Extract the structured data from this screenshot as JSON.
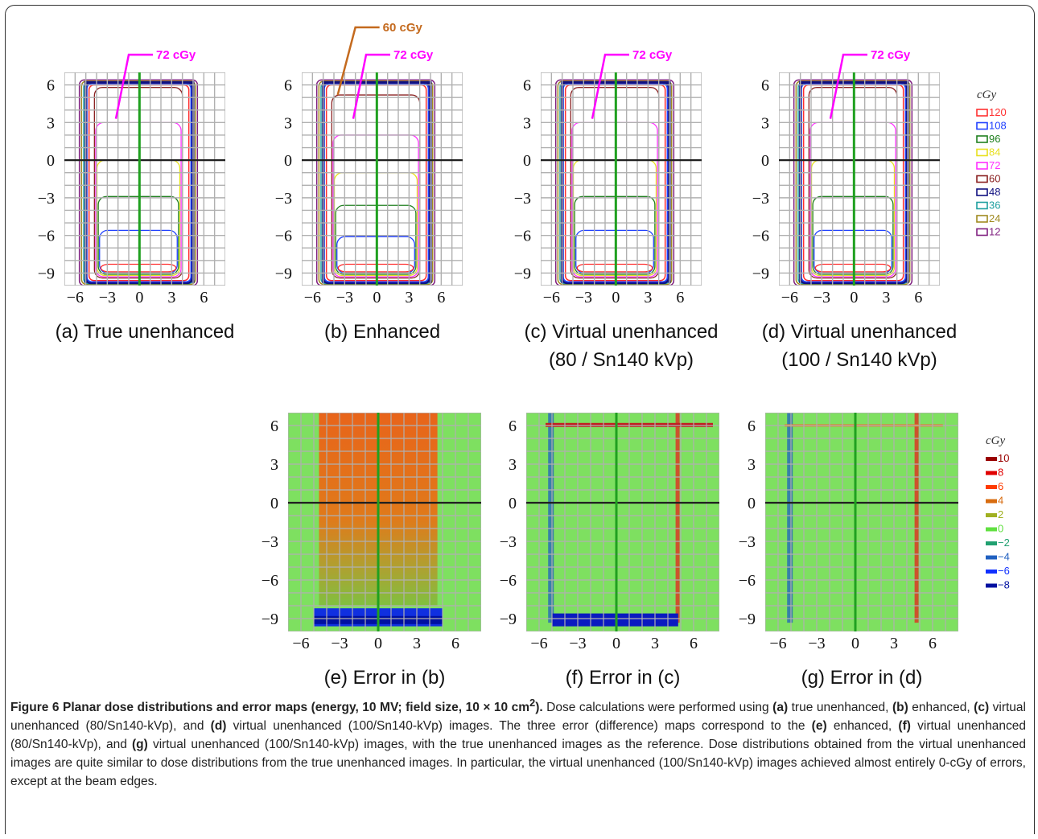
{
  "panels": [
    {
      "id": "a",
      "label": "(a) True unenhanced",
      "label2": "",
      "annotations": [
        {
          "text": "72 cGy",
          "color": "#ff00ff"
        }
      ]
    },
    {
      "id": "b",
      "label": "(b) Enhanced",
      "label2": "",
      "annotations": [
        {
          "text": "72 cGy",
          "color": "#ff00ff"
        },
        {
          "text": "60 cGy",
          "color": "#c46a1e"
        }
      ]
    },
    {
      "id": "c",
      "label": "(c) Virtual unenhanced",
      "label2": "(80 / Sn140 kVp)",
      "annotations": [
        {
          "text": "72 cGy",
          "color": "#ff00ff"
        }
      ]
    },
    {
      "id": "d",
      "label": "(d) Virtual unenhanced",
      "label2": "(100 / Sn140 kVp)",
      "annotations": [
        {
          "text": "72 cGy",
          "color": "#ff00ff"
        }
      ]
    },
    {
      "id": "e",
      "label": "(e) Error in (b)",
      "label2": "",
      "annotations": []
    },
    {
      "id": "f",
      "label": "(f) Error in (c)",
      "label2": "",
      "annotations": []
    },
    {
      "id": "g",
      "label": "(g) Error in (d)",
      "label2": "",
      "annotations": []
    }
  ],
  "chart_data": [
    {
      "type": "heatmap",
      "title": "(a) True unenhanced",
      "xticks": [
        "−6",
        "−3",
        "0",
        "3",
        "6"
      ],
      "yticks": [
        "6",
        "3",
        "0",
        "−3",
        "−6",
        "−9"
      ],
      "xlim": [
        -7,
        8
      ],
      "ylim": [
        -10,
        7
      ],
      "isodose_levels_cGy": [
        120,
        108,
        96,
        84,
        72,
        60,
        48,
        36,
        24,
        12
      ]
    },
    {
      "type": "heatmap",
      "title": "(b) Enhanced",
      "xticks": [
        "−6",
        "−3",
        "0",
        "3",
        "6"
      ],
      "yticks": [
        "6",
        "3",
        "0",
        "−3",
        "−6",
        "−9"
      ]
    },
    {
      "type": "heatmap",
      "title": "(c) Virtual unenhanced (80 / Sn140 kVp)",
      "xticks": [
        "−6",
        "−3",
        "0",
        "3",
        "6"
      ],
      "yticks": [
        "6",
        "3",
        "0",
        "−3",
        "−6",
        "−9"
      ]
    },
    {
      "type": "heatmap",
      "title": "(d) Virtual unenhanced (100 / Sn140 kVp)",
      "xticks": [
        "−6",
        "−3",
        "0",
        "3",
        "6"
      ],
      "yticks": [
        "6",
        "3",
        "0",
        "−3",
        "−6",
        "−9"
      ]
    },
    {
      "type": "heatmap",
      "title": "(e) Error in (b)",
      "xticks": [
        "−6",
        "−3",
        "0",
        "3",
        "6"
      ],
      "yticks": [
        "6",
        "3",
        "0",
        "−3",
        "−6",
        "−9"
      ],
      "error_levels_cGy": [
        10,
        8,
        6,
        4,
        2,
        0,
        -2,
        -4,
        -6,
        -8
      ]
    },
    {
      "type": "heatmap",
      "title": "(f) Error in (c)",
      "xticks": [
        "−6",
        "−3",
        "0",
        "3",
        "6"
      ],
      "yticks": [
        "6",
        "3",
        "0",
        "−3",
        "−6",
        "−9"
      ]
    },
    {
      "type": "heatmap",
      "title": "(g) Error in (d)",
      "xticks": [
        "−6",
        "−3",
        "0",
        "3",
        "6"
      ],
      "yticks": [
        "6",
        "3",
        "0",
        "−3",
        "−6",
        "−9"
      ]
    }
  ],
  "legend_dose": {
    "unit": "cGy",
    "entries": [
      {
        "label": "120",
        "color": "#ff3030"
      },
      {
        "label": "108",
        "color": "#2040ff"
      },
      {
        "label": "96",
        "color": "#208020"
      },
      {
        "label": "84",
        "color": "#e8e020"
      },
      {
        "label": "72",
        "color": "#ff30ff"
      },
      {
        "label": "60",
        "color": "#8a2020"
      },
      {
        "label": "48",
        "color": "#101080"
      },
      {
        "label": "36",
        "color": "#20a0a0"
      },
      {
        "label": "24",
        "color": "#a08a20"
      },
      {
        "label": "12",
        "color": "#802080"
      }
    ]
  },
  "legend_error": {
    "unit": "cGy",
    "entries": [
      {
        "label": "10",
        "color": "#9a0000"
      },
      {
        "label": "8",
        "color": "#e00000"
      },
      {
        "label": "6",
        "color": "#ff3a00"
      },
      {
        "label": "4",
        "color": "#d86c10"
      },
      {
        "label": "2",
        "color": "#a0b020"
      },
      {
        "label": "0",
        "color": "#60e040"
      },
      {
        "label": "−2",
        "color": "#20a070"
      },
      {
        "label": "−4",
        "color": "#2060c0"
      },
      {
        "label": "−6",
        "color": "#1030ff"
      },
      {
        "label": "−8",
        "color": "#0010a0"
      }
    ]
  },
  "caption": {
    "title": "Figure 6 Planar dose distributions and error maps (energy, 10 MV; field size, 10 × 10 cm",
    "title_sup": "2",
    "title_end": ").",
    "parts": [
      {
        "t": " Dose calculations were performed using ",
        "b": false
      },
      {
        "t": "(a)",
        "b": true
      },
      {
        "t": " true unenhanced, ",
        "b": false
      },
      {
        "t": "(b)",
        "b": true
      },
      {
        "t": " enhanced, ",
        "b": false
      },
      {
        "t": "(c)",
        "b": true
      },
      {
        "t": " virtual unenhanced (80/Sn140-kVp), and ",
        "b": false
      },
      {
        "t": "(d)",
        "b": true
      },
      {
        "t": " virtual unenhanced (100/Sn140-kVp) images. The three error (difference) maps correspond to the ",
        "b": false
      },
      {
        "t": "(e)",
        "b": true
      },
      {
        "t": " enhanced, ",
        "b": false
      },
      {
        "t": "(f)",
        "b": true
      },
      {
        "t": " virtual unenhanced (80/Sn140-kVp), and ",
        "b": false
      },
      {
        "t": "(g)",
        "b": true
      },
      {
        "t": " virtual unenhanced (100/Sn140-kVp) images, with the true unenhanced images as the reference. Dose distributions obtained from the virtual unenhanced images are quite similar to dose distributions from the true unenhanced images. In particular, the virtual unenhanced (100/Sn140-kVp) images achieved almost entirely 0-cGy of errors, except at the beam edges.",
        "b": false
      }
    ]
  }
}
